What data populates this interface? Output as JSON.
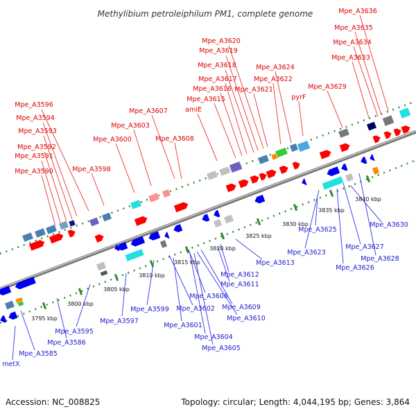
{
  "title": "Methylibium petroleiphilum PM1, complete genome",
  "footer": {
    "accession": "Accession: NC_008825",
    "stats": "Topology: circular; Length: 4,044,195 bp; Genes: 3,864"
  },
  "colors": {
    "forward_label": "#dd0000",
    "reverse_label": "#1a1acc",
    "forward_gene": "#ff0000",
    "reverse_gene": "#0000ee",
    "backbone": "#888888",
    "dots": "#2e8b2e"
  },
  "positions": [
    "3795 kbp",
    "3800 kbp",
    "3805 kbp",
    "3810 kbp",
    "3815 kbp",
    "3820 kbp",
    "3825 kbp",
    "3830 kbp",
    "3835 kbp",
    "3840 kbp"
  ],
  "labels_forward": [
    "Mpe_A3636",
    "Mpe_A3635",
    "Mpe_A3634",
    "Mpe_A3633",
    "Mpe_A3620",
    "Mpe_A3619",
    "Mpe_A3618",
    "Mpe_A3624",
    "Mpe_A3617",
    "Mpe_A3622",
    "Mpe_A3616",
    "Mpe_A3621",
    "Mpe_A3629",
    "Mpe_A3615",
    "pyrF",
    "amiE",
    "Mpe_A3596",
    "Mpe_A3607",
    "Mpe_A3594",
    "Mpe_A3603",
    "Mpe_A3593",
    "Mpe_A3600",
    "Mpe_A3608",
    "Mpe_A3592",
    "Mpe_A3591",
    "Mpe_A3598",
    "Mpe_A3590"
  ],
  "labels_reverse": [
    "Mpe_A3630",
    "Mpe_A3625",
    "Mpe_A3627",
    "Mpe_A3623",
    "Mpe_A3628",
    "Mpe_A3613",
    "Mpe_A3626",
    "Mpe_A3612",
    "Mpe_A3611",
    "Mpe_A3599",
    "Mpe_A3606",
    "Mpe_A3609",
    "Mpe_A3602",
    "Mpe_A3610",
    "Mpe_A3597",
    "Mpe_A3601",
    "Mpe_A3595",
    "Mpe_A3604",
    "Mpe_A3586",
    "Mpe_A3605",
    "Mpe_A3585",
    "metX"
  ]
}
